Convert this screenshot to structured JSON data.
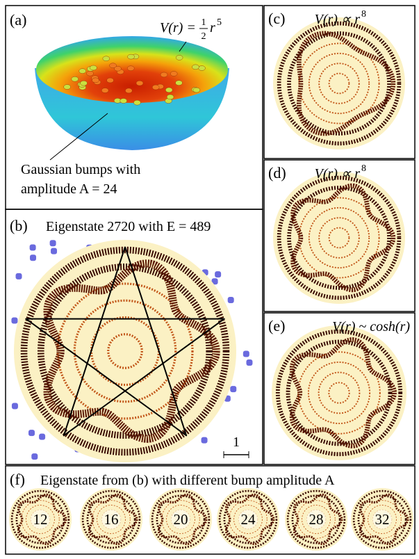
{
  "panels": {
    "a": {
      "label": "(a)",
      "potential": {
        "lhs": "V(r) =",
        "numerator": "1",
        "denominator": "2",
        "variable": "r",
        "exponent": "5"
      },
      "annotation": [
        "Gaussian bumps with",
        "amplitude A = 24"
      ]
    },
    "b": {
      "label": "(b)",
      "title": "Eigenstate 2720 with E = 489",
      "scale_bar": "1"
    },
    "c": {
      "label": "(c)",
      "potential": "V(r) ∝ r",
      "exponent": "8"
    },
    "d": {
      "label": "(d)",
      "potential": "V(r) ∝ r",
      "exponent": "8"
    },
    "e": {
      "label": "(e)",
      "potential": "V(r) ~ cosh(r)"
    },
    "f": {
      "label": "(f)",
      "title": "Eigenstate from (b) with different bump amplitude A",
      "amplitudes": [
        12,
        16,
        20,
        24,
        28,
        32
      ]
    }
  }
}
